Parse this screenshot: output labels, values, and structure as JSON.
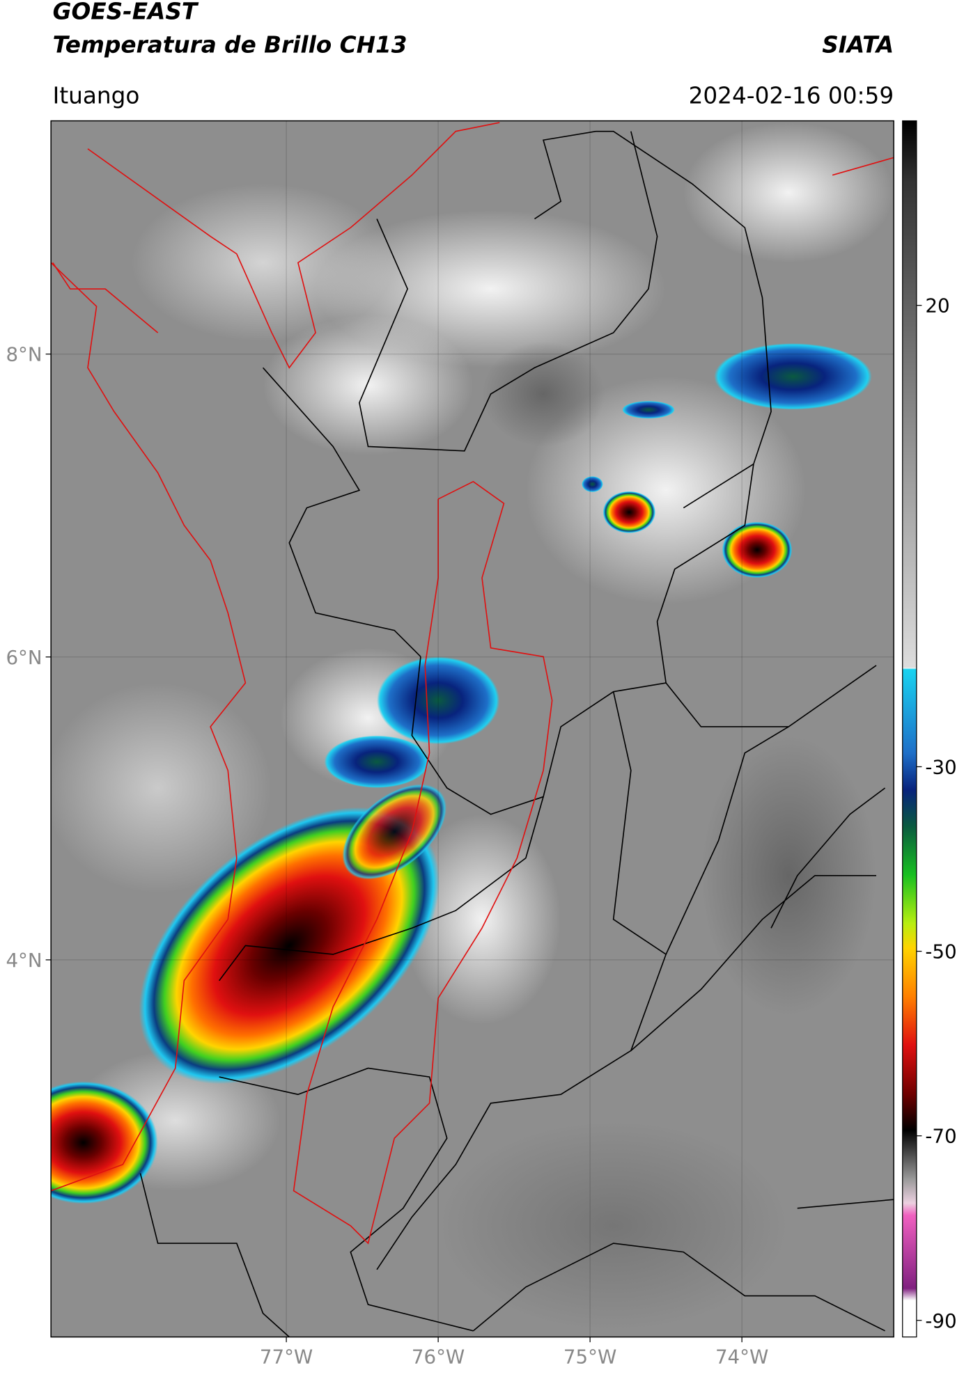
{
  "header": {
    "title": "GOES-EAST",
    "subtitle": "Temperatura de Brillo CH13",
    "brand": "SIATA",
    "location": "Ituango",
    "timestamp": "2024-02-16 00:59"
  },
  "map": {
    "type": "satellite-map",
    "xlim": [
      -78.55,
      -73.0
    ],
    "ylim": [
      1.51,
      9.54
    ],
    "xticks": [
      {
        "value": -77,
        "label": "77°W"
      },
      {
        "value": -76,
        "label": "76°W"
      },
      {
        "value": -75,
        "label": "75°W"
      },
      {
        "value": -74,
        "label": "74°W"
      }
    ],
    "yticks": [
      {
        "value": 8,
        "label": "8°N"
      },
      {
        "value": 6,
        "label": "6°N"
      },
      {
        "value": 4,
        "label": "4°N"
      }
    ],
    "grid": true
  },
  "colorbar": {
    "clim": [
      -91.8,
      40
    ],
    "ticks": [
      20,
      -30,
      -50,
      -70,
      -90
    ]
  }
}
